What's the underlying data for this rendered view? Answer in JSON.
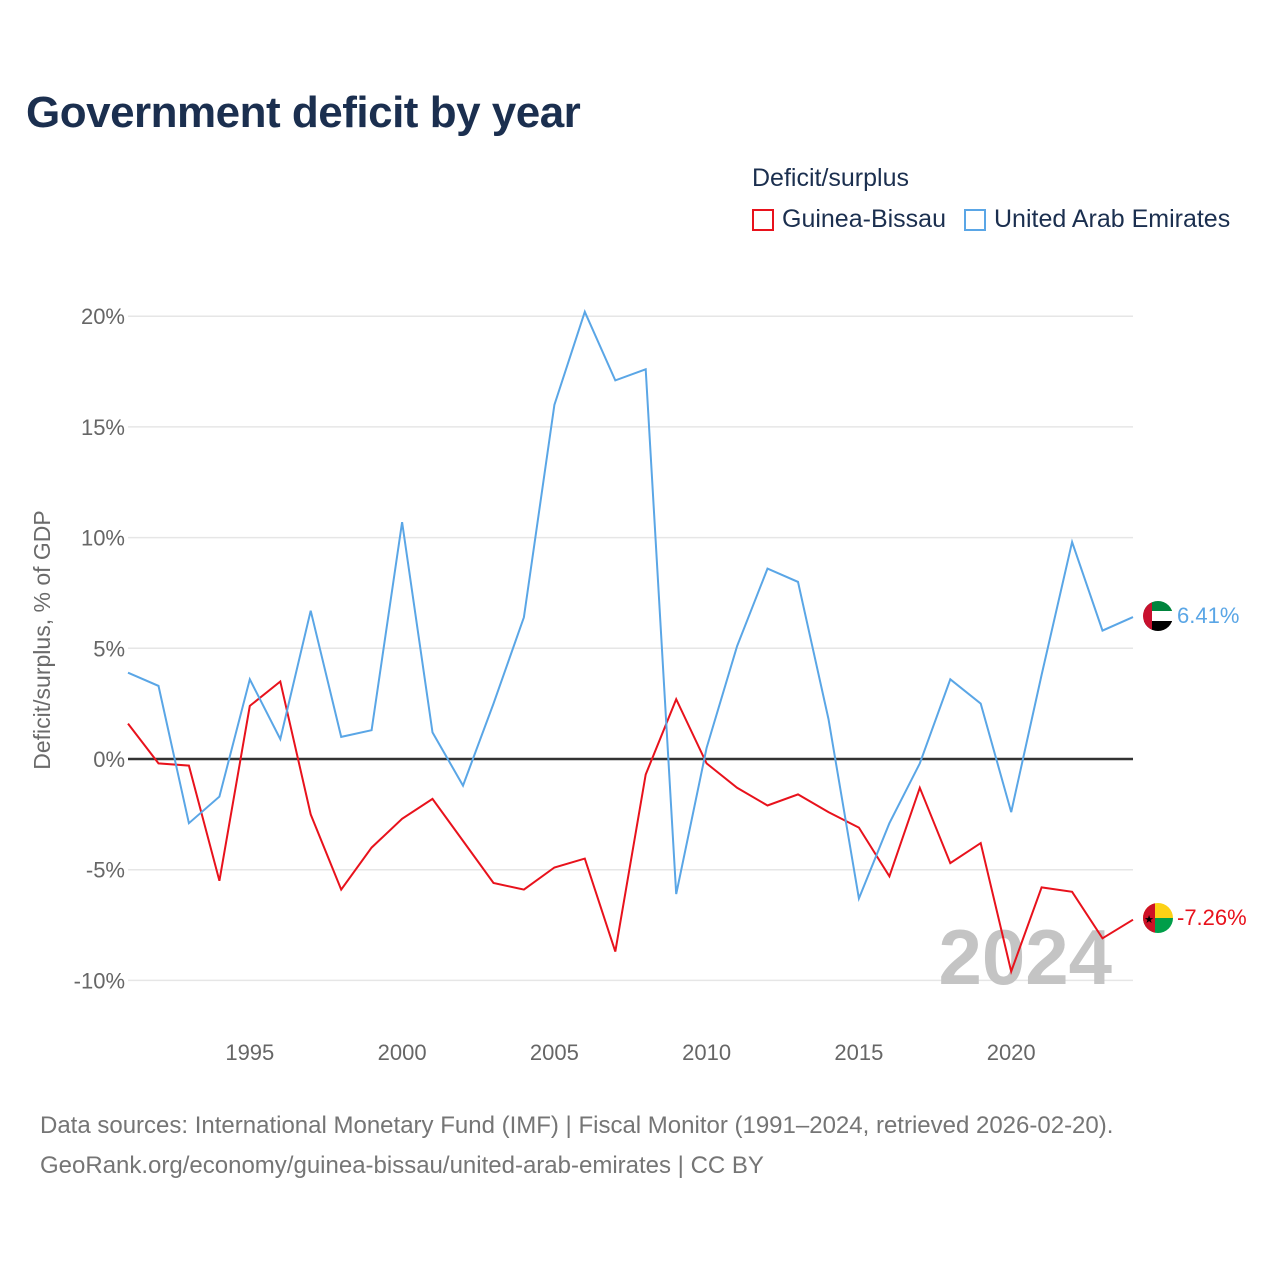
{
  "title": "Government deficit by year",
  "legend": {
    "title": "Deficit/surplus",
    "items": [
      {
        "label": "Guinea-Bissau",
        "color": "#e8121c"
      },
      {
        "label": "United Arab Emirates",
        "color": "#5aa6e6"
      }
    ]
  },
  "year_watermark": "2024",
  "end_labels": {
    "uae": "6.41%",
    "gnb": "-7.26%"
  },
  "footer": {
    "line1": "Data sources: International Monetary Fund (IMF) | Fiscal Monitor (1991–2024, retrieved 2026-02-20).",
    "line2": "GeoRank.org/economy/guinea-bissau/united-arab-emirates | CC BY"
  },
  "chart_data": {
    "type": "line",
    "title": "Government deficit by year",
    "xlabel": "",
    "ylabel": "Deficit/surplus, % of GDP",
    "xlim": [
      1991,
      2024
    ],
    "ylim": [
      -11.5,
      21
    ],
    "yticks": [
      -10,
      -5,
      0,
      5,
      10,
      15,
      20
    ],
    "ytick_labels": [
      "-10%",
      "-5%",
      "0%",
      "5%",
      "10%",
      "15%",
      "20%"
    ],
    "xticks": [
      1995,
      2000,
      2005,
      2010,
      2015,
      2020
    ],
    "xtick_labels": [
      "1995",
      "2000",
      "2005",
      "2010",
      "2015",
      "2020"
    ],
    "grid": true,
    "x": [
      1991,
      1992,
      1993,
      1994,
      1995,
      1996,
      1997,
      1998,
      1999,
      2000,
      2001,
      2002,
      2003,
      2004,
      2005,
      2006,
      2007,
      2008,
      2009,
      2010,
      2011,
      2012,
      2013,
      2014,
      2015,
      2016,
      2017,
      2018,
      2019,
      2020,
      2021,
      2022,
      2023,
      2024
    ],
    "series": [
      {
        "name": "Guinea-Bissau",
        "color": "#e8121c",
        "values": [
          1.6,
          -0.2,
          -0.3,
          -5.5,
          2.4,
          3.5,
          -2.5,
          -5.9,
          -4.0,
          -2.7,
          -1.8,
          -3.7,
          -5.6,
          -5.9,
          -4.9,
          -4.5,
          -8.7,
          -0.7,
          2.7,
          -0.2,
          -1.3,
          -2.1,
          -1.6,
          -2.4,
          -3.1,
          -5.3,
          -1.3,
          -4.7,
          -3.8,
          -9.6,
          -5.8,
          -6.0,
          -8.1,
          -7.26
        ]
      },
      {
        "name": "United Arab Emirates",
        "color": "#5aa6e6",
        "values": [
          3.9,
          3.3,
          -2.9,
          -1.7,
          3.6,
          0.9,
          6.7,
          1.0,
          1.3,
          10.7,
          1.2,
          -1.2,
          2.5,
          6.4,
          16.0,
          20.2,
          17.1,
          17.6,
          -6.1,
          0.5,
          5.1,
          8.6,
          8.0,
          1.8,
          -6.3,
          -2.9,
          -0.2,
          3.6,
          2.5,
          -2.4,
          3.8,
          9.8,
          5.8,
          6.41
        ]
      }
    ]
  }
}
